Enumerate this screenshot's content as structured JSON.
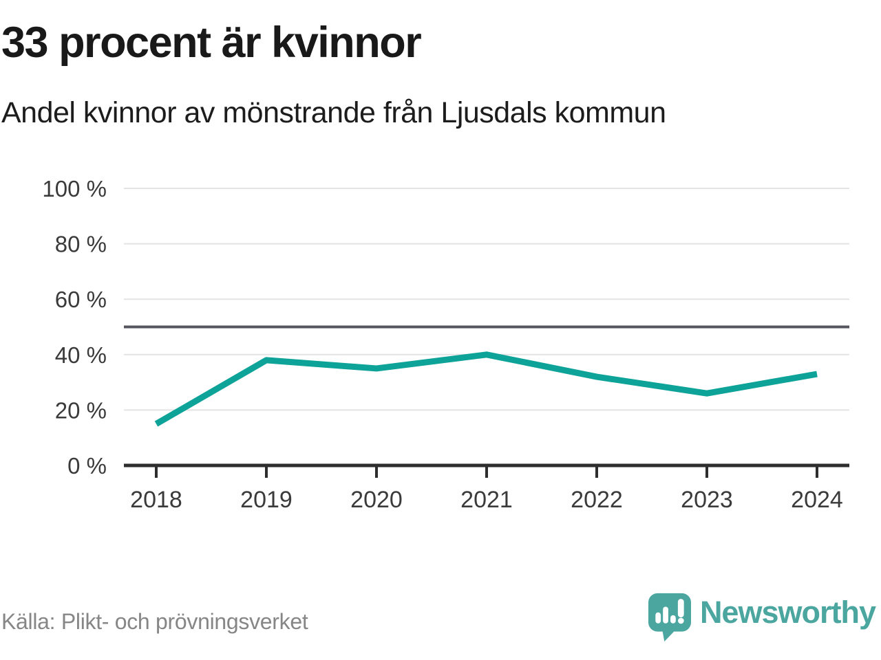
{
  "header": {
    "title": "33 procent är kvinnor",
    "subtitle": "Andel kvinnor av mönstrande från Ljusdals kommun"
  },
  "chart_data": {
    "type": "line",
    "title": "33 procent är kvinnor",
    "subtitle": "Andel kvinnor av mönstrande från Ljusdals kommun",
    "categories": [
      "2018",
      "2019",
      "2020",
      "2021",
      "2022",
      "2023",
      "2024"
    ],
    "series": [
      {
        "name": "Andel kvinnor av mönstrande",
        "values": [
          15,
          38,
          35,
          40,
          32,
          26,
          33
        ]
      }
    ],
    "unit": "%",
    "ylim": [
      0,
      100
    ],
    "y_ticks": [
      0,
      20,
      40,
      60,
      80,
      100
    ],
    "y_tick_labels": [
      "0 %",
      "20 %",
      "40 %",
      "60 %",
      "80 %",
      "100 %"
    ],
    "reference_line": 50,
    "grid": true,
    "legend": "none",
    "line_color": "#0da399",
    "reference_line_color": "#55555d",
    "grid_color": "#e3e3e3",
    "axis_color": "#2e2e2e",
    "label_color": "#3a3a3a"
  },
  "footer": {
    "source": "Källa: Plikt- och prövningsverket",
    "brand": "Newsworthy",
    "brand_color": "#4ca6a0"
  }
}
